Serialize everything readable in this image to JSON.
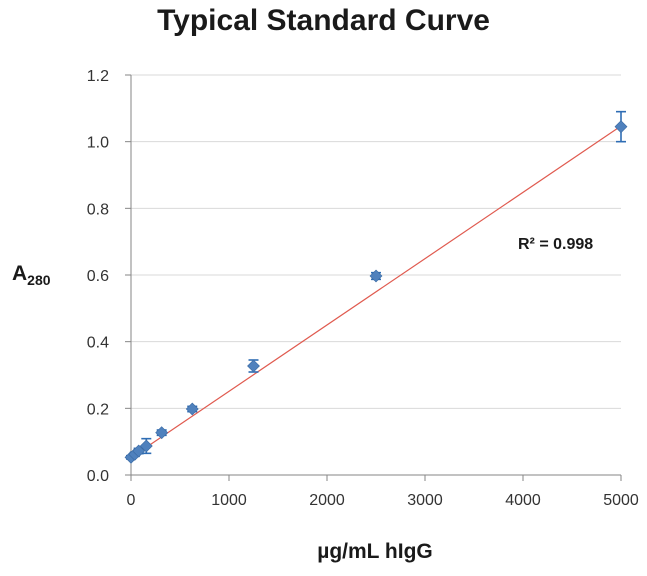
{
  "chart_data": {
    "type": "scatter",
    "title": "Typical Standard Curve",
    "ylabel_main": "A",
    "ylabel_sub": "280",
    "xlabel": "µg/mL hIgG",
    "xlim": [
      0,
      5000
    ],
    "ylim": [
      0,
      1.2
    ],
    "xticks": [
      "0",
      "1000",
      "2000",
      "3000",
      "4000",
      "5000"
    ],
    "yticks": [
      "0.0",
      "0.2",
      "0.4",
      "0.6",
      "0.8",
      "1.0",
      "1.2"
    ],
    "grid": "horizontal",
    "legend": "none",
    "series": [
      {
        "color": "#4f81bd",
        "marker": "diamond",
        "points": [
          {
            "x": 0,
            "y": 0.053,
            "err": 0.005
          },
          {
            "x": 39,
            "y": 0.062,
            "err": 0.006
          },
          {
            "x": 78,
            "y": 0.072,
            "err": 0.008
          },
          {
            "x": 156,
            "y": 0.087,
            "err": 0.022
          },
          {
            "x": 313,
            "y": 0.127,
            "err": 0.008
          },
          {
            "x": 625,
            "y": 0.198,
            "err": 0.008
          },
          {
            "x": 1250,
            "y": 0.327,
            "err": 0.018
          },
          {
            "x": 2500,
            "y": 0.597,
            "err": 0.01
          },
          {
            "x": 5000,
            "y": 1.045,
            "err": 0.045
          }
        ]
      }
    ],
    "trendline": {
      "type": "linear",
      "color": "#e05a4f",
      "slope": 0.000199,
      "intercept": 0.052
    },
    "annotation": "R² = 0.998"
  }
}
